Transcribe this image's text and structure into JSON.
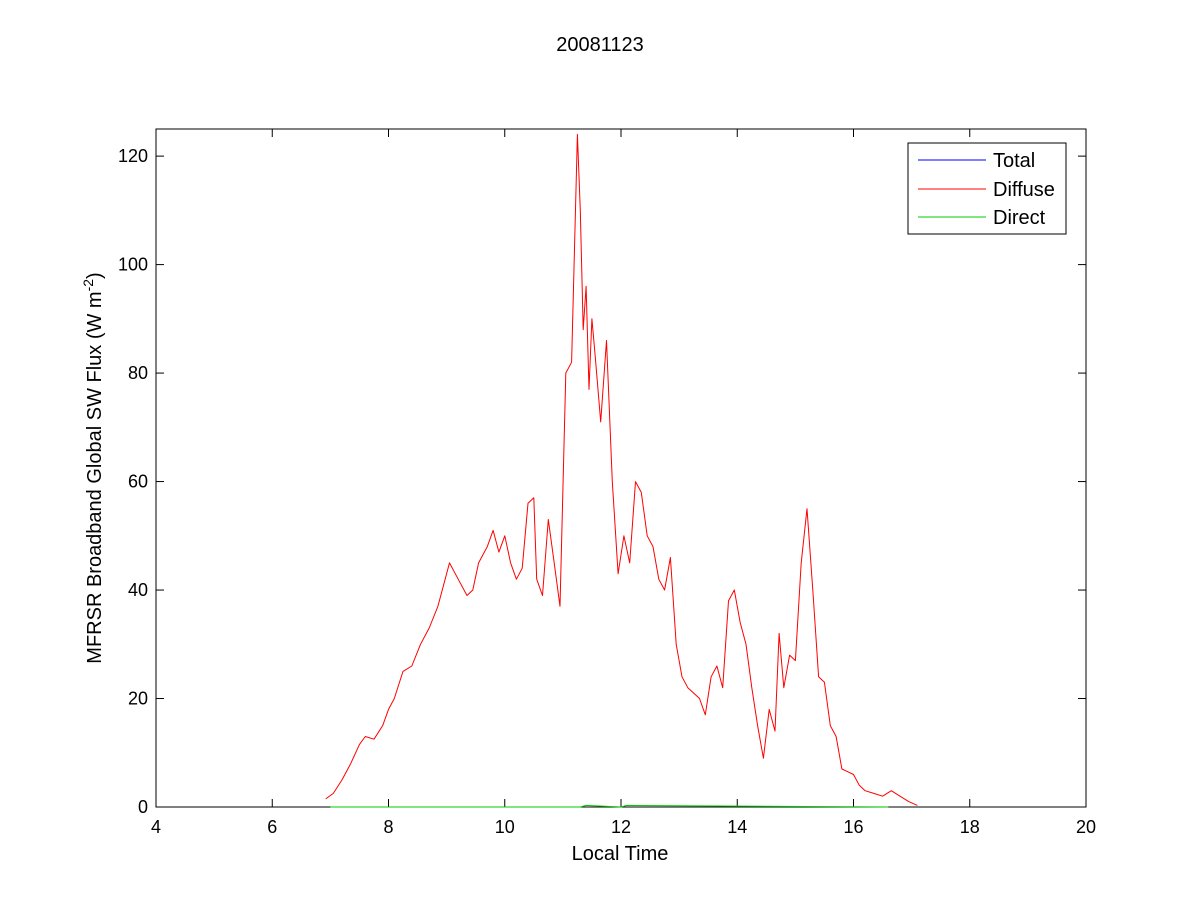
{
  "chart_data": {
    "type": "line",
    "title": "20081123",
    "xlabel": "Local Time",
    "ylabel_main": "MFRSR Broadband Global SW Flux (W m",
    "ylabel_sup": "-2",
    "ylabel_tail": ")",
    "xlim": [
      4,
      20
    ],
    "ylim": [
      0,
      125
    ],
    "xticks": [
      4,
      6,
      8,
      10,
      12,
      14,
      16,
      18,
      20
    ],
    "yticks": [
      0,
      20,
      40,
      60,
      80,
      100,
      120
    ],
    "grid": false,
    "legend_position": "top-right",
    "series": [
      {
        "name": "Total",
        "color": "#0000ff",
        "x": [],
        "y": []
      },
      {
        "name": "Diffuse",
        "color": "#ff0000",
        "x": [
          6.92,
          7.05,
          7.2,
          7.35,
          7.5,
          7.6,
          7.75,
          7.9,
          8.0,
          8.1,
          8.25,
          8.4,
          8.55,
          8.7,
          8.85,
          8.95,
          9.05,
          9.2,
          9.35,
          9.45,
          9.55,
          9.7,
          9.8,
          9.9,
          10.0,
          10.1,
          10.2,
          10.3,
          10.4,
          10.5,
          10.55,
          10.65,
          10.75,
          10.85,
          10.95,
          11.05,
          11.15,
          11.25,
          11.3,
          11.35,
          11.4,
          11.45,
          11.5,
          11.55,
          11.65,
          11.75,
          11.85,
          11.95,
          12.05,
          12.15,
          12.25,
          12.35,
          12.45,
          12.55,
          12.65,
          12.75,
          12.85,
          12.95,
          13.05,
          13.15,
          13.25,
          13.35,
          13.45,
          13.55,
          13.65,
          13.75,
          13.85,
          13.95,
          14.05,
          14.15,
          14.25,
          14.35,
          14.45,
          14.55,
          14.65,
          14.72,
          14.8,
          14.9,
          15.0,
          15.1,
          15.2,
          15.3,
          15.4,
          15.5,
          15.6,
          15.7,
          15.8,
          15.9,
          16.0,
          16.1,
          16.2,
          16.35,
          16.5,
          16.65,
          16.8,
          16.95,
          17.1
        ],
        "y": [
          1.5,
          2.5,
          5,
          8,
          11.5,
          13,
          12.5,
          15,
          18,
          20,
          25,
          26,
          30,
          33,
          37,
          41,
          45,
          42,
          39,
          40,
          45,
          48,
          51,
          47,
          50,
          45,
          42,
          44,
          56,
          57,
          42,
          39,
          53,
          45,
          37,
          80,
          82,
          124,
          110,
          88,
          96,
          77,
          90,
          84,
          71,
          86,
          60,
          43,
          50,
          45,
          60,
          58,
          50,
          48,
          42,
          40,
          46,
          30,
          24,
          22,
          21,
          20,
          17,
          24,
          26,
          22,
          38,
          40,
          34,
          30,
          22,
          15,
          9,
          18,
          14,
          32,
          22,
          28,
          27,
          45,
          55,
          40,
          24,
          23,
          15,
          13,
          7,
          6.5,
          6,
          4,
          3,
          2.5,
          2,
          3,
          2,
          1,
          0.3
        ]
      },
      {
        "name": "Direct",
        "color": "#00cc00",
        "x": [
          7.0,
          11.3,
          11.4,
          12.0,
          12.1,
          16.6
        ],
        "y": [
          0,
          0,
          0.3,
          0,
          0.3,
          0
        ]
      }
    ]
  }
}
